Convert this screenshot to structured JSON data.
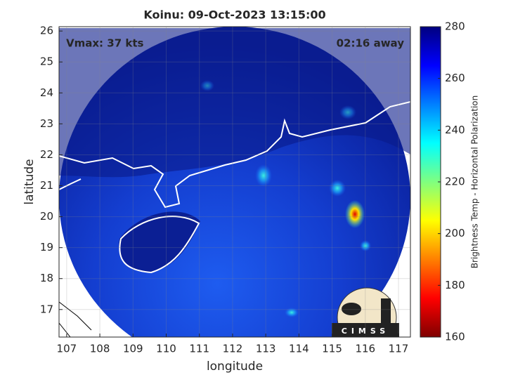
{
  "chart_data": {
    "type": "map",
    "title": "Koinu: 09-Oct-2023 13:15:00",
    "xlabel": "longitude",
    "ylabel": "latitude",
    "xlim": [
      106.77,
      117.36
    ],
    "ylim": [
      16.11,
      26.14
    ],
    "xticks": [
      107,
      108,
      109,
      110,
      111,
      112,
      113,
      114,
      115,
      116,
      117
    ],
    "yticks": [
      17,
      18,
      19,
      20,
      21,
      22,
      23,
      24,
      25,
      26
    ],
    "grid": true,
    "annotations": [
      "Vmax: 37 kts",
      "02:16 away"
    ],
    "logo": "CIMSS",
    "colorbar": {
      "label": "Brightness Temp - Horizontal Polarization",
      "clim": [
        160,
        280
      ],
      "ticks": [
        160,
        180,
        200,
        220,
        240,
        260,
        280
      ],
      "colormap": "jet"
    }
  }
}
